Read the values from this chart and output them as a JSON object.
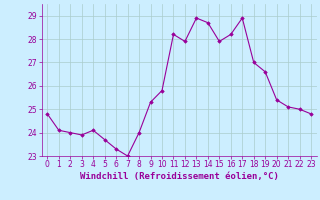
{
  "x": [
    0,
    1,
    2,
    3,
    4,
    5,
    6,
    7,
    8,
    9,
    10,
    11,
    12,
    13,
    14,
    15,
    16,
    17,
    18,
    19,
    20,
    21,
    22,
    23
  ],
  "y": [
    24.8,
    24.1,
    24.0,
    23.9,
    24.1,
    23.7,
    23.3,
    23.0,
    24.0,
    25.3,
    25.8,
    28.2,
    27.9,
    28.9,
    28.7,
    27.9,
    28.2,
    28.9,
    27.0,
    26.6,
    25.4,
    25.1,
    25.0,
    24.8
  ],
  "line_color": "#990099",
  "marker": "D",
  "marker_size": 1.8,
  "bg_color": "#cceeff",
  "grid_color": "#aacccc",
  "xlabel": "Windchill (Refroidissement éolien,°C)",
  "xlabel_color": "#990099",
  "xlim": [
    -0.5,
    23.5
  ],
  "ylim": [
    23.0,
    29.5
  ],
  "yticks": [
    23,
    24,
    25,
    26,
    27,
    28,
    29
  ],
  "xticks": [
    0,
    1,
    2,
    3,
    4,
    5,
    6,
    7,
    8,
    9,
    10,
    11,
    12,
    13,
    14,
    15,
    16,
    17,
    18,
    19,
    20,
    21,
    22,
    23
  ],
  "tick_color": "#990099",
  "tick_fontsize": 5.5,
  "xlabel_fontsize": 6.5
}
